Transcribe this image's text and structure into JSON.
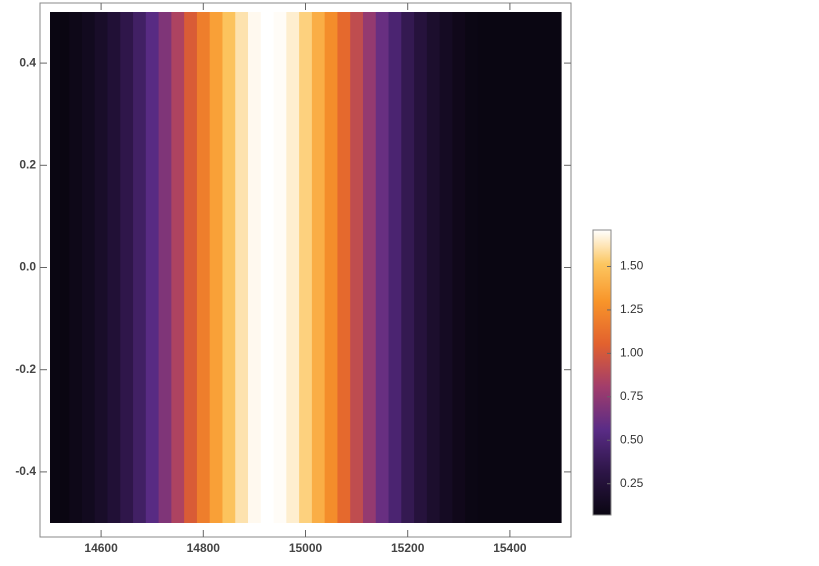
{
  "chart_data": {
    "type": "density",
    "x": [
      14500,
      14525,
      14550,
      14575,
      14600,
      14625,
      14650,
      14675,
      14700,
      14725,
      14750,
      14775,
      14800,
      14825,
      14850,
      14875,
      14900,
      14925,
      14950,
      14975,
      15000,
      15025,
      15050,
      15075,
      15100,
      15125,
      15150,
      15175,
      15200,
      15225,
      15250,
      15275,
      15300,
      15325,
      15350,
      15375,
      15400,
      15425,
      15450,
      15475,
      15500
    ],
    "values": [
      0.06,
      0.07,
      0.1,
      0.13,
      0.18,
      0.24,
      0.33,
      0.43,
      0.55,
      0.69,
      0.85,
      1.02,
      1.19,
      1.35,
      1.5,
      1.61,
      1.69,
      1.72,
      1.7,
      1.65,
      1.55,
      1.41,
      1.26,
      1.09,
      0.92,
      0.76,
      0.61,
      0.48,
      0.36,
      0.27,
      0.2,
      0.15,
      0.11,
      0.08,
      0.06,
      0.05,
      0.04,
      0.04,
      0.03,
      0.03,
      0.03
    ],
    "xlim": [
      14500,
      15500
    ],
    "xticks": [
      14600,
      14800,
      15000,
      15200,
      15400
    ],
    "ylim": [
      -0.5,
      0.5
    ],
    "yticks": [
      -0.4,
      -0.2,
      {
        "value": 0,
        "label": "0.0"
      },
      0.2,
      0.4
    ],
    "zlim": [
      0.07,
      1.71
    ],
    "zticks": [
      0.25,
      {
        "value": 0.5,
        "label": "0.50"
      },
      0.75,
      {
        "value": 1,
        "label": "1.00"
      },
      1.25,
      {
        "value": 1.5,
        "label": "1.50"
      }
    ]
  }
}
